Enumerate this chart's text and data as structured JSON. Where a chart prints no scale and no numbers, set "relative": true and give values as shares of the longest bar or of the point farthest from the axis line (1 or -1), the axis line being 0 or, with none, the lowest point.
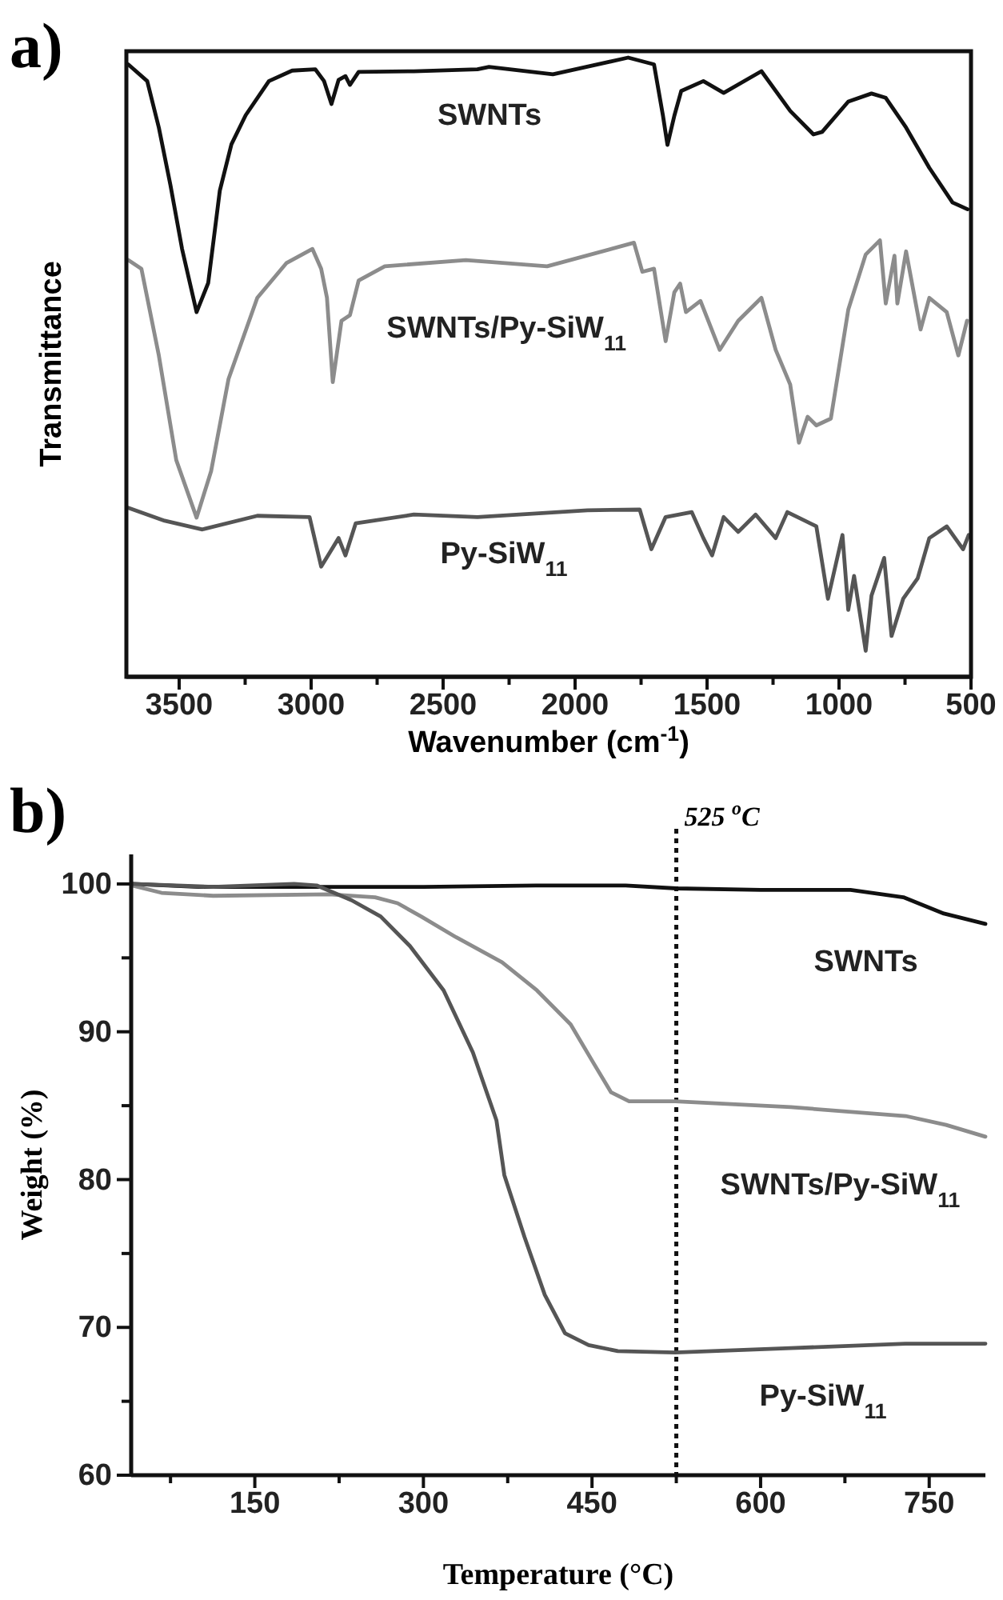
{
  "chart_data": [
    {
      "type": "line",
      "title": "a)",
      "xlabel": "Wavenumber (cm$^{-1}$)",
      "ylabel": "Transmittance",
      "relative": true,
      "tick_labels": "x",
      "xlim": [
        3700,
        500
      ],
      "xticks": [
        3500,
        {
          "value": 3250,
          "label": null
        },
        3000,
        {
          "value": 2750,
          "label": null
        },
        2500,
        {
          "value": 2250,
          "label": null
        },
        2000,
        {
          "value": 1750,
          "label": null
        },
        1500,
        {
          "value": 1250,
          "label": null
        },
        1000,
        {
          "value": 750,
          "label": null
        },
        500
      ],
      "series": [
        {
          "name": "SWNTs",
          "color": "#111111",
          "x": [
            3693,
            3621,
            3577,
            3533,
            3489,
            3434,
            3390,
            3346,
            3302,
            3248,
            3160,
            3072,
            2984,
            2951,
            2923,
            2896,
            2870,
            2853,
            2820,
            2611,
            2370,
            2326,
            2084,
            1799,
            1701,
            1667,
            1650,
            1624,
            1598,
            1514,
            1437,
            1294,
            1185,
            1097,
            1064,
            965,
            877,
            823,
            746,
            658,
            570,
            513
          ],
          "values": [
            0.989,
            0.962,
            0.887,
            0.794,
            0.691,
            0.589,
            0.636,
            0.785,
            0.86,
            0.907,
            0.962,
            0.979,
            0.981,
            0.962,
            0.925,
            0.964,
            0.97,
            0.956,
            0.977,
            0.978,
            0.981,
            0.985,
            0.973,
            1,
            0.989,
            0.906,
            0.859,
            0.906,
            0.946,
            0.962,
            0.943,
            0.978,
            0.914,
            0.876,
            0.88,
            0.929,
            0.942,
            0.935,
            0.887,
            0.822,
            0.766,
            0.755
          ]
        },
        {
          "name": "SWNTs/Py-SiW$_{11}$",
          "color": "#8c8c8c",
          "x": [
            3693,
            3643,
            3577,
            3511,
            3434,
            3379,
            3313,
            3204,
            3094,
            2995,
            2962,
            2940,
            2918,
            2885,
            2853,
            2820,
            2721,
            2414,
            2106,
            1777,
            1745,
            1701,
            1657,
            1624,
            1602,
            1580,
            1525,
            1452,
            1382,
            1294,
            1240,
            1185,
            1152,
            1119,
            1086,
            1031,
            965,
            899,
            845,
            823,
            790,
            779,
            746,
            691,
            658,
            592,
            548,
            515
          ],
          "values": [
            0.673,
            0.659,
            0.519,
            0.35,
            0.257,
            0.332,
            0.481,
            0.612,
            0.668,
            0.691,
            0.659,
            0.612,
            0.476,
            0.575,
            0.584,
            0.64,
            0.663,
            0.673,
            0.663,
            0.701,
            0.654,
            0.659,
            0.542,
            0.621,
            0.635,
            0.589,
            0.607,
            0.528,
            0.575,
            0.612,
            0.528,
            0.472,
            0.378,
            0.42,
            0.406,
            0.417,
            0.593,
            0.682,
            0.705,
            0.603,
            0.68,
            0.603,
            0.687,
            0.561,
            0.612,
            0.589,
            0.519,
            0.575
          ]
        },
        {
          "name": "Py-SiW$_{11}$",
          "color": "#555555",
          "x": [
            3693,
            3555,
            3412,
            3204,
            3006,
            2962,
            2929,
            2896,
            2870,
            2831,
            2611,
            2370,
            1953,
            1755,
            1711,
            1657,
            1558,
            1514,
            1481,
            1437,
            1382,
            1316,
            1240,
            1196,
            1086,
            1042,
            987,
            965,
            943,
            899,
            877,
            855,
            829,
            801,
            757,
            702,
            658,
            592,
            530,
            509
          ],
          "values": [
            0.273,
            0.252,
            0.238,
            0.26,
            0.258,
            0.178,
            0.201,
            0.224,
            0.196,
            0.248,
            0.262,
            0.258,
            0.269,
            0.27,
            0.206,
            0.258,
            0.266,
            0.224,
            0.196,
            0.258,
            0.234,
            0.262,
            0.224,
            0.266,
            0.243,
            0.126,
            0.229,
            0.108,
            0.163,
            0.042,
            0.131,
            0.159,
            0.192,
            0.066,
            0.126,
            0.159,
            0.224,
            0.243,
            0.206,
            0.229
          ]
        }
      ]
    },
    {
      "type": "line",
      "title": "b)",
      "xlabel": "Temperature (°C)",
      "ylabel": "Weight (%)",
      "xlim": [
        40,
        800
      ],
      "ylim": [
        60,
        102
      ],
      "xticks": [
        {
          "value": 75,
          "label": null
        },
        150,
        {
          "value": 225,
          "label": null
        },
        300,
        {
          "value": 375,
          "label": null
        },
        450,
        {
          "value": 525,
          "label": null
        },
        600,
        {
          "value": 675,
          "label": null
        },
        750
      ],
      "yticks": [
        60,
        {
          "value": 65,
          "label": null
        },
        70,
        {
          "value": 75,
          "label": null
        },
        80,
        {
          "value": 85,
          "label": null
        },
        90,
        {
          "value": 95,
          "label": null
        },
        100
      ],
      "ref_lines": [
        {
          "axis": "x",
          "value": 525,
          "label": "525 $^{o}$C",
          "color": "#111111",
          "line_style": "dotted"
        }
      ],
      "series": [
        {
          "name": "SWNTs",
          "color": "#111111",
          "x": [
            41,
            100,
            200,
            300,
            400,
            480,
            525,
            600,
            680,
            727,
            763,
            800
          ],
          "values": [
            100,
            99.8,
            99.8,
            99.8,
            99.9,
            99.9,
            99.7,
            99.6,
            99.6,
            99.1,
            98,
            97.3
          ]
        },
        {
          "name": "SWNTs/Py-SiW$_{11}$",
          "color": "#8c8c8c",
          "x": [
            41,
            67,
            113,
            216,
            257,
            277,
            298,
            329,
            370,
            401,
            431,
            452,
            467,
            483,
            524,
            627,
            729,
            765,
            800
          ],
          "values": [
            99.9,
            99.4,
            99.2,
            99.3,
            99.1,
            98.7,
            97.8,
            96.4,
            94.7,
            92.8,
            90.5,
            87.8,
            85.9,
            85.3,
            85.3,
            84.9,
            84.3,
            83.7,
            82.9
          ]
        },
        {
          "name": "Py-SiW$_{11}$",
          "color": "#555555",
          "x": [
            41,
            113,
            185,
            205,
            236,
            262,
            288,
            318,
            344,
            365,
            372,
            390,
            408,
            426,
            447,
            473,
            524,
            627,
            729,
            800
          ],
          "values": [
            100,
            99.8,
            100,
            99.9,
            98.9,
            97.8,
            95.8,
            92.8,
            88.6,
            84,
            80.3,
            76.1,
            72.2,
            69.6,
            68.8,
            68.4,
            68.3,
            68.6,
            68.9,
            68.9
          ]
        }
      ]
    }
  ]
}
